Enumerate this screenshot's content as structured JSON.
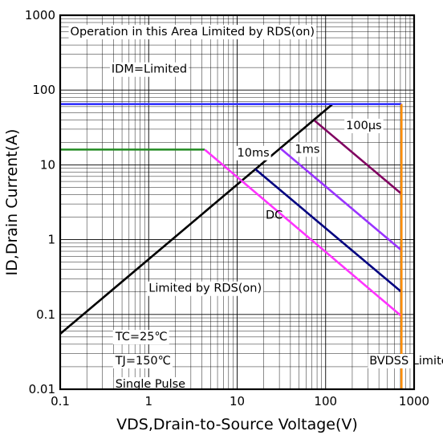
{
  "chart_data": {
    "type": "line",
    "x_scale": "log",
    "y_scale": "log",
    "xlim": [
      0.1,
      1000
    ],
    "ylim": [
      0.01,
      1000
    ],
    "xlabel": "VDS,Drain-to-Source Voltage(V)",
    "ylabel": "ID,Drain Current(A)",
    "x_tick_labels": [
      "0.1",
      "1",
      "10",
      "100",
      "1000"
    ],
    "y_tick_labels": [
      "1000",
      "100",
      "10",
      "1",
      "0.1",
      "0.01"
    ],
    "x_ticks": [
      0.1,
      1,
      10,
      100,
      1000
    ],
    "y_ticks": [
      1000,
      100,
      10,
      1,
      0.1,
      0.01
    ],
    "grid": true,
    "series": [
      {
        "color": "#000000",
        "points": [
          [
            0.1,
            0.055
          ],
          [
            120,
            65
          ]
        ]
      },
      {
        "color": "#3333ff",
        "points": [
          [
            0.1,
            65
          ],
          [
            720,
            65
          ]
        ]
      },
      {
        "color": "#228b22",
        "points": [
          [
            0.1,
            16
          ],
          [
            4.3,
            16
          ]
        ]
      },
      {
        "color": "#ff33ff",
        "points": [
          [
            4.3,
            16
          ],
          [
            720,
            0.095
          ]
        ]
      },
      {
        "color": "#000080",
        "points": [
          [
            16,
            8.8
          ],
          [
            720,
            0.2
          ]
        ]
      },
      {
        "color": "#9933ff",
        "points": [
          [
            31,
            16.5
          ],
          [
            720,
            0.72
          ]
        ]
      },
      {
        "color": "#800060",
        "points": [
          [
            75,
            39
          ],
          [
            720,
            4.1
          ]
        ]
      },
      {
        "color": "#ff8c00",
        "points": [
          [
            720,
            65
          ],
          [
            720,
            0.01
          ]
        ]
      }
    ],
    "annotations": [
      {
        "text": "Operation in this Area Limited by RDS(on)",
        "x": 0.13,
        "y": 540,
        "bg": true
      },
      {
        "text": "IDM=Limited",
        "x": 0.38,
        "y": 170,
        "bg": true
      },
      {
        "text": "100μs",
        "x": 170,
        "y": 30,
        "bg": true
      },
      {
        "text": "1ms",
        "x": 45,
        "y": 14.5,
        "bg": true
      },
      {
        "text": "10ms",
        "x": 10,
        "y": 13,
        "bg": true
      },
      {
        "text": "DC",
        "x": 21,
        "y": 1.9,
        "bg": false
      },
      {
        "text": "Limited by RDS(on)",
        "x": 1.0,
        "y": 0.2,
        "bg": true
      },
      {
        "text": "TC=25℃",
        "x": 0.42,
        "y": 0.045,
        "bg": true
      },
      {
        "text": "TJ=150℃",
        "x": 0.42,
        "y": 0.0215,
        "bg": true
      },
      {
        "text": "Single Pulse",
        "x": 0.42,
        "y": 0.0105,
        "bg": true
      },
      {
        "text": "BVDSS Limited",
        "x": 312,
        "y": 0.0215,
        "bg": true
      }
    ]
  }
}
